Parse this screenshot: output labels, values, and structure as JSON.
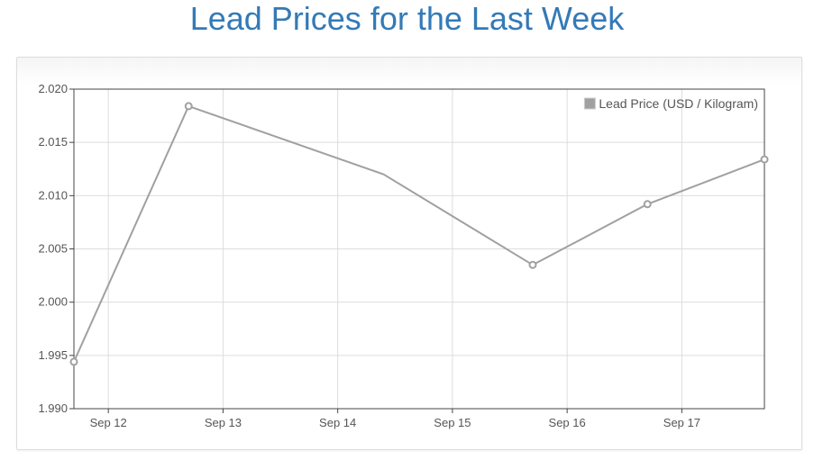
{
  "page": {
    "title": "Lead Prices for the Last Week"
  },
  "chart_data": {
    "type": "line",
    "title": "Lead Prices for the Last Week",
    "xlabel": "",
    "ylabel": "",
    "x_tick_labels": [
      "Sep 12",
      "Sep 13",
      "Sep 14",
      "Sep 15",
      "Sep 16",
      "Sep 17"
    ],
    "y_tick_labels": [
      "1.990",
      "1.995",
      "2.000",
      "2.005",
      "2.010",
      "2.015",
      "2.020"
    ],
    "ylim": [
      1.99,
      2.02
    ],
    "xlim_days": [
      11.7,
      17.72
    ],
    "grid": true,
    "legend_position": "top-right",
    "series": [
      {
        "name": "Lead Price (USD / Kilogram)",
        "color": "#a0a0a0",
        "x_days": [
          11.7,
          12.7,
          14.4,
          15.7,
          16.7,
          17.72
        ],
        "values": [
          1.9944,
          2.0184,
          2.012,
          2.0035,
          2.0092,
          2.0134
        ],
        "marker_index": [
          0,
          1,
          3,
          4,
          5
        ]
      }
    ]
  }
}
